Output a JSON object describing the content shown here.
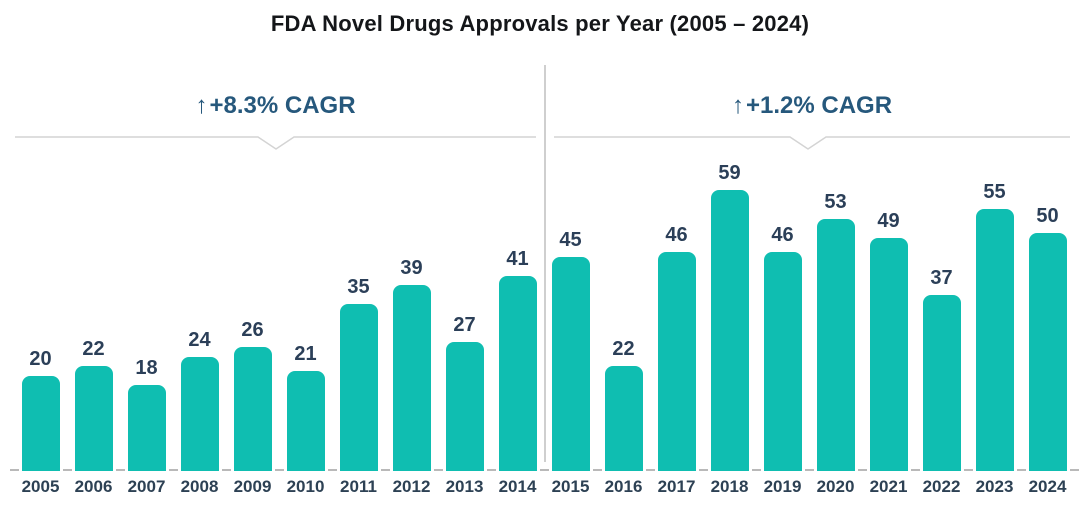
{
  "title": "FDA Novel Drugs Approvals per Year (2005 – 2024)",
  "annotations": {
    "left": {
      "arrow": "↑",
      "text": "+8.3% CAGR"
    },
    "right": {
      "arrow": "↑",
      "text": "+1.2% CAGR"
    }
  },
  "colors": {
    "bar": "#0fbeb1",
    "label": "#2b3f58",
    "year_label": "#2d4154",
    "cagr_text": "#26587c",
    "title_text": "#141619",
    "bracket": "#d4d4d4",
    "tick": "#b9b9b9",
    "divider": "#cfcfcf",
    "background": "#ffffff"
  },
  "chart_data": {
    "type": "bar",
    "categories": [
      "2005",
      "2006",
      "2007",
      "2008",
      "2009",
      "2010",
      "2011",
      "2012",
      "2013",
      "2014",
      "2015",
      "2016",
      "2017",
      "2018",
      "2019",
      "2020",
      "2021",
      "2022",
      "2023",
      "2024"
    ],
    "values": [
      20,
      22,
      18,
      24,
      26,
      21,
      35,
      39,
      27,
      41,
      45,
      22,
      46,
      59,
      46,
      53,
      49,
      37,
      55,
      50
    ],
    "title": "FDA Novel Drugs Approvals per Year (2005 – 2024)",
    "xlabel": "",
    "ylabel": "",
    "ylim": [
      0,
      62
    ],
    "grid": false,
    "legend": false,
    "bar_color": "#0fbeb1",
    "data_labels_shown": true,
    "annotations": [
      "↑+8.3% CAGR",
      "↑+1.2% CAGR"
    ]
  }
}
